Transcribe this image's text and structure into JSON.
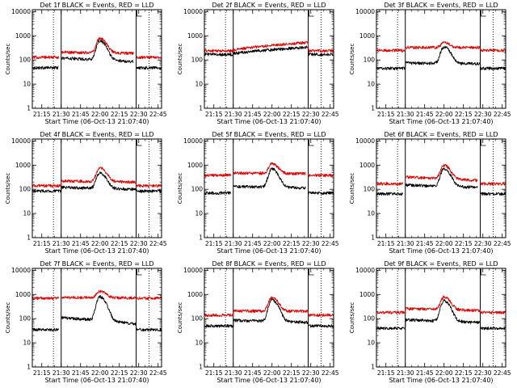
{
  "chart_data": [
    {
      "type": "line",
      "title": "Det 1f BLACK = Events, RED = LLD",
      "xlabel": "Start Time (06-Oct-13 21:07:40)",
      "ylabel": "Counts/sec",
      "ylog": true,
      "ylim": [
        1,
        12000
      ],
      "xlim": [
        "21:07:40",
        "22:47:40"
      ],
      "x_ticks": [
        "21:15",
        "21:30",
        "21:45",
        "22:00",
        "22:15",
        "22:30",
        "22:45"
      ],
      "y_ticks": [
        "1",
        "10",
        "100",
        "1000",
        "10000"
      ],
      "markers": {
        "solid": [
          "21:30",
          "22:28"
        ],
        "dotted": [
          "21:24",
          "22:38"
        ]
      },
      "gaps": [
        [
          "21:28",
          "21:30"
        ],
        [
          "22:26",
          "22:28"
        ]
      ],
      "series": [
        {
          "name": "Events",
          "color": "#000000",
          "base": 48,
          "peak": 620,
          "rise": [
            120,
            85
          ]
        },
        {
          "name": "LLD",
          "color": "#dd0000",
          "base": 130,
          "peak": 800,
          "rise": [
            210,
            190
          ]
        }
      ]
    },
    {
      "type": "line",
      "title": "Det 2f BLACK = Events, RED = LLD",
      "xlabel": "Start Time (06-Oct-13 21:07:40)",
      "ylabel": "Counts/sec",
      "ylog": true,
      "ylim": [
        1,
        12000
      ],
      "xlim": [
        "21:07:40",
        "22:47:40"
      ],
      "x_ticks": [
        "21:15",
        "21:30",
        "21:45",
        "22:00",
        "22:15",
        "22:30",
        "22:45"
      ],
      "y_ticks": [
        "1",
        "10",
        "100",
        "1000",
        "10000"
      ],
      "markers": {
        "solid": [
          "21:30",
          "22:28"
        ],
        "dotted": [
          "21:24",
          "22:38"
        ]
      },
      "gaps": [],
      "series": [
        {
          "name": "Events",
          "color": "#000000",
          "base": 170,
          "peak": 0,
          "rise": [
            190,
            340
          ]
        },
        {
          "name": "LLD",
          "color": "#dd0000",
          "base": 240,
          "peak": 0,
          "rise": [
            260,
            540
          ]
        }
      ]
    },
    {
      "type": "line",
      "title": "Det 3f BLACK = Events, RED = LLD",
      "xlabel": "Start Time (06-Oct-13 21:07:40)",
      "ylabel": "Counts/sec",
      "ylog": true,
      "ylim": [
        1,
        12000
      ],
      "xlim": [
        "21:07:40",
        "22:47:40"
      ],
      "x_ticks": [
        "21:15",
        "21:30",
        "21:45",
        "22:00",
        "22:15",
        "22:30",
        "22:45"
      ],
      "y_ticks": [
        "1",
        "10",
        "100",
        "1000",
        "10000"
      ],
      "markers": {
        "solid": [
          "21:30",
          "22:28"
        ],
        "dotted": [
          "21:24",
          "22:38"
        ]
      },
      "gaps": [],
      "series": [
        {
          "name": "Events",
          "color": "#000000",
          "base": 45,
          "peak": 350,
          "rise": [
            75,
            70
          ]
        },
        {
          "name": "LLD",
          "color": "#dd0000",
          "base": 250,
          "peak": 520,
          "rise": [
            330,
            330
          ]
        }
      ]
    },
    {
      "type": "line",
      "title": "Det 4f BLACK = Events, RED = LLD",
      "xlabel": "Start Time (06-Oct-13 21:07:40)",
      "ylabel": "Counts/sec",
      "ylog": true,
      "ylim": [
        1,
        12000
      ],
      "xlim": [
        "21:07:40",
        "22:47:40"
      ],
      "x_ticks": [
        "21:15",
        "21:30",
        "21:45",
        "22:00",
        "22:15",
        "22:30",
        "22:45"
      ],
      "y_ticks": [
        "1",
        "10",
        "100",
        "1000",
        "10000"
      ],
      "markers": {
        "solid": [
          "21:30",
          "22:28"
        ],
        "dotted": [
          "21:24",
          "22:38"
        ]
      },
      "gaps": [],
      "series": [
        {
          "name": "Events",
          "color": "#000000",
          "base": 85,
          "peak": 480,
          "rise": [
            120,
            100
          ]
        },
        {
          "name": "LLD",
          "color": "#dd0000",
          "base": 140,
          "peak": 780,
          "rise": [
            220,
            200
          ]
        }
      ]
    },
    {
      "type": "line",
      "title": "Det 5f BLACK = Events, RED = LLD",
      "xlabel": "Start Time (06-Oct-13 21:07:40)",
      "ylabel": "Counts/sec",
      "ylog": true,
      "ylim": [
        1,
        12000
      ],
      "xlim": [
        "21:07:40",
        "22:47:40"
      ],
      "x_ticks": [
        "21:15",
        "21:30",
        "21:45",
        "22:00",
        "22:15",
        "22:30",
        "22:45"
      ],
      "y_ticks": [
        "1",
        "10",
        "100",
        "1000",
        "10000"
      ],
      "markers": {
        "solid": [
          "21:30",
          "22:28"
        ],
        "dotted": [
          "21:24",
          "22:38"
        ]
      },
      "gaps": [
        [
          "21:28",
          "21:30"
        ],
        [
          "22:26",
          "22:28"
        ]
      ],
      "series": [
        {
          "name": "Events",
          "color": "#000000",
          "base": 70,
          "peak": 700,
          "rise": [
            130,
            115
          ]
        },
        {
          "name": "LLD",
          "color": "#dd0000",
          "base": 380,
          "peak": 1150,
          "rise": [
            470,
            440
          ]
        }
      ]
    },
    {
      "type": "line",
      "title": "Det 6f BLACK = Events, RED = LLD",
      "xlabel": "Start Time (06-Oct-13 21:07:40)",
      "ylabel": "Counts/sec",
      "ylog": true,
      "ylim": [
        1,
        12000
      ],
      "xlim": [
        "21:07:40",
        "22:47:40"
      ],
      "x_ticks": [
        "21:15",
        "21:30",
        "21:45",
        "22:00",
        "22:15",
        "22:30",
        "22:45"
      ],
      "y_ticks": [
        "1",
        "10",
        "100",
        "1000",
        "10000"
      ],
      "markers": {
        "solid": [
          "21:30",
          "22:28"
        ],
        "dotted": [
          "21:24",
          "22:38"
        ]
      },
      "gaps": [
        [
          "21:28",
          "21:30"
        ],
        [
          "22:26",
          "22:28"
        ]
      ],
      "series": [
        {
          "name": "Events",
          "color": "#000000",
          "base": 65,
          "peak": 700,
          "rise": [
            150,
            120
          ]
        },
        {
          "name": "LLD",
          "color": "#dd0000",
          "base": 170,
          "peak": 1000,
          "rise": [
            320,
            230
          ]
        }
      ]
    },
    {
      "type": "line",
      "title": "Det 7f BLACK = Events, RED = LLD",
      "xlabel": "Start Time (06-Oct-13 21:07:40)",
      "ylabel": "Counts/sec",
      "ylog": true,
      "ylim": [
        1,
        12000
      ],
      "xlim": [
        "21:07:40",
        "22:47:40"
      ],
      "x_ticks": [
        "21:15",
        "21:30",
        "21:45",
        "22:00",
        "22:15",
        "22:30",
        "22:45"
      ],
      "y_ticks": [
        "1",
        "10",
        "100",
        "1000",
        "10000"
      ],
      "markers": {
        "solid": [
          "21:30",
          "22:28"
        ],
        "dotted": [
          "21:24",
          "22:38"
        ]
      },
      "gaps": [
        [
          "21:28",
          "21:30"
        ]
      ],
      "series": [
        {
          "name": "Events",
          "color": "#000000",
          "base": 35,
          "peak": 800,
          "rise": [
            110,
            60
          ]
        },
        {
          "name": "LLD",
          "color": "#dd0000",
          "base": 700,
          "peak": 1350,
          "rise": [
            760,
            720
          ]
        }
      ]
    },
    {
      "type": "line",
      "title": "Det 8f BLACK = Events, RED = LLD",
      "xlabel": "Start Time (06-Oct-13 21:07:40)",
      "ylabel": "Counts/sec",
      "ylog": true,
      "ylim": [
        1,
        12000
      ],
      "xlim": [
        "21:07:40",
        "22:47:40"
      ],
      "x_ticks": [
        "21:15",
        "21:30",
        "21:45",
        "22:00",
        "22:15",
        "22:30",
        "22:45"
      ],
      "y_ticks": [
        "1",
        "10",
        "100",
        "1000",
        "10000"
      ],
      "markers": {
        "solid": [
          "21:30",
          "22:28"
        ],
        "dotted": [
          "21:24",
          "22:38"
        ]
      },
      "gaps": [],
      "series": [
        {
          "name": "Events",
          "color": "#000000",
          "base": 50,
          "peak": 600,
          "rise": [
            85,
            70
          ]
        },
        {
          "name": "LLD",
          "color": "#dd0000",
          "base": 140,
          "peak": 750,
          "rise": [
            210,
            200
          ]
        }
      ]
    },
    {
      "type": "line",
      "title": "Det 9f BLACK = Events, RED = LLD",
      "xlabel": "Start Time (06-Oct-13 21:07:40)",
      "ylabel": "Counts/sec",
      "ylog": true,
      "ylim": [
        1,
        12000
      ],
      "xlim": [
        "21:07:40",
        "22:47:40"
      ],
      "x_ticks": [
        "21:15",
        "21:30",
        "21:45",
        "22:00",
        "22:15",
        "22:30",
        "22:45"
      ],
      "y_ticks": [
        "1",
        "10",
        "100",
        "1000",
        "10000"
      ],
      "markers": {
        "solid": [
          "21:30",
          "22:28"
        ],
        "dotted": [
          "21:24",
          "22:38"
        ]
      },
      "gaps": [],
      "series": [
        {
          "name": "Events",
          "color": "#000000",
          "base": 40,
          "peak": 550,
          "rise": [
            90,
            70
          ]
        },
        {
          "name": "LLD",
          "color": "#dd0000",
          "base": 180,
          "peak": 800,
          "rise": [
            260,
            220
          ]
        }
      ]
    }
  ]
}
